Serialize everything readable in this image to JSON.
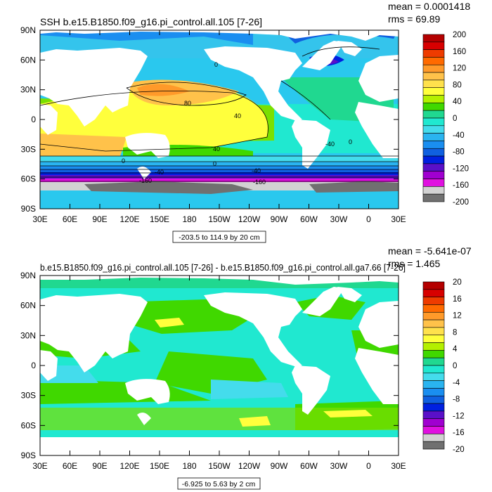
{
  "chart_data": [
    {
      "type": "heatmap",
      "title": "SSH b.e15.B1850.f09_g16.pi_control.all.105 [7-26]",
      "stats": {
        "mean": "mean = 0.0001418",
        "rms": "rms = 69.89"
      },
      "x_ticks": [
        "30E",
        "60E",
        "90E",
        "120E",
        "150E",
        "180",
        "150W",
        "120W",
        "90W",
        "60W",
        "30W",
        "0",
        "30E"
      ],
      "y_ticks": [
        "90N",
        "60N",
        "30N",
        "0",
        "30S",
        "60S",
        "90S"
      ],
      "xlim": [
        30,
        390
      ],
      "ylim": [
        -90,
        90
      ],
      "range_label": "-203.5 to 114.9 by 20 cm",
      "contour_labels": [
        "0",
        "80",
        "40",
        "40",
        "0",
        "0",
        "-40",
        "-40",
        "-160",
        "-160",
        "-40",
        "0"
      ],
      "colorbar": {
        "labels": [
          "200",
          "160",
          "120",
          "80",
          "40",
          "0",
          "-40",
          "-80",
          "-120",
          "-160",
          "-200"
        ],
        "colors": [
          "#b40000",
          "#d70000",
          "#ee3b00",
          "#ff6a00",
          "#ff9a2a",
          "#ffc24a",
          "#ffe14c",
          "#ffff3c",
          "#b4f000",
          "#40d800",
          "#20d890",
          "#20e8d0",
          "#44dcec",
          "#2ab4f0",
          "#1a8ef0",
          "#1060e0",
          "#0020e0",
          "#5a10c8",
          "#a000d0",
          "#e010e0",
          "#d2d2d2",
          "#707070"
        ]
      }
    },
    {
      "type": "heatmap",
      "title": "b.e15.B1850.f09_g16.pi_control.all.105 [7-26] - b.e15.B1850.f09_g16.pi_control.all.ga7.66 [7-26]",
      "stats": {
        "mean": "mean = -5.641e-07",
        "rms": "rms = 1.465"
      },
      "x_ticks": [
        "30E",
        "60E",
        "90E",
        "120E",
        "150E",
        "180",
        "150W",
        "120W",
        "90W",
        "60W",
        "30W",
        "0",
        "30E"
      ],
      "y_ticks": [
        "90N",
        "60N",
        "30N",
        "0",
        "30S",
        "60S",
        "90S"
      ],
      "xlim": [
        30,
        390
      ],
      "ylim": [
        -90,
        90
      ],
      "range_label": "-6.925 to 5.63 by 2 cm",
      "colorbar": {
        "labels": [
          "20",
          "16",
          "12",
          "8",
          "4",
          "0",
          "-4",
          "-8",
          "-12",
          "-16",
          "-20"
        ],
        "colors": [
          "#b40000",
          "#d70000",
          "#ee3b00",
          "#ff6a00",
          "#ff9a2a",
          "#ffc24a",
          "#ffe14c",
          "#ffff3c",
          "#b4f000",
          "#40d800",
          "#20d890",
          "#20e8d0",
          "#44dcec",
          "#2ab4f0",
          "#1a8ef0",
          "#1060e0",
          "#0020e0",
          "#5a10c8",
          "#a000d0",
          "#e010e0",
          "#d2d2d2",
          "#707070"
        ]
      }
    }
  ]
}
